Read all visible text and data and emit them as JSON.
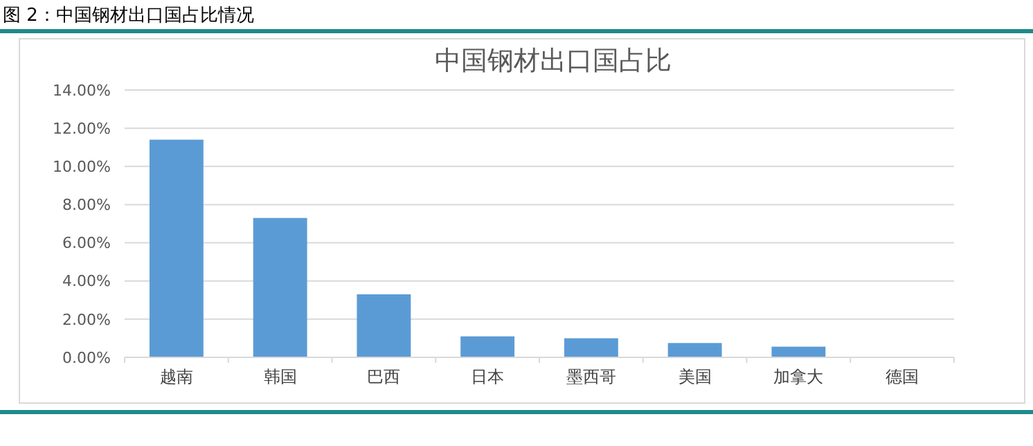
{
  "chart_data": {
    "type": "bar",
    "title": "图 2：中国钢材出口国占比情况",
    "subtitle": "中国钢材出口国占比",
    "categories": [
      "越南",
      "韩国",
      "巴西",
      "日本",
      "墨西哥",
      "美国",
      "加拿大",
      "德国"
    ],
    "values": [
      11.4,
      7.3,
      3.3,
      1.1,
      1.0,
      0.75,
      0.56,
      0
    ],
    "color": "#5b9bd5",
    "ylim": [
      0,
      14
    ],
    "yticks": [
      {
        "value": 0,
        "label": "0.00%"
      },
      {
        "value": 2,
        "label": "2.00%"
      },
      {
        "value": 4,
        "label": "4.00%"
      },
      {
        "value": 6,
        "label": "6.00%"
      },
      {
        "value": 8,
        "label": "8.00%"
      },
      {
        "value": 10,
        "label": "10.00%"
      },
      {
        "value": 12,
        "label": "12.00%"
      },
      {
        "value": 14,
        "label": "14.00%"
      }
    ],
    "grid": "y"
  }
}
